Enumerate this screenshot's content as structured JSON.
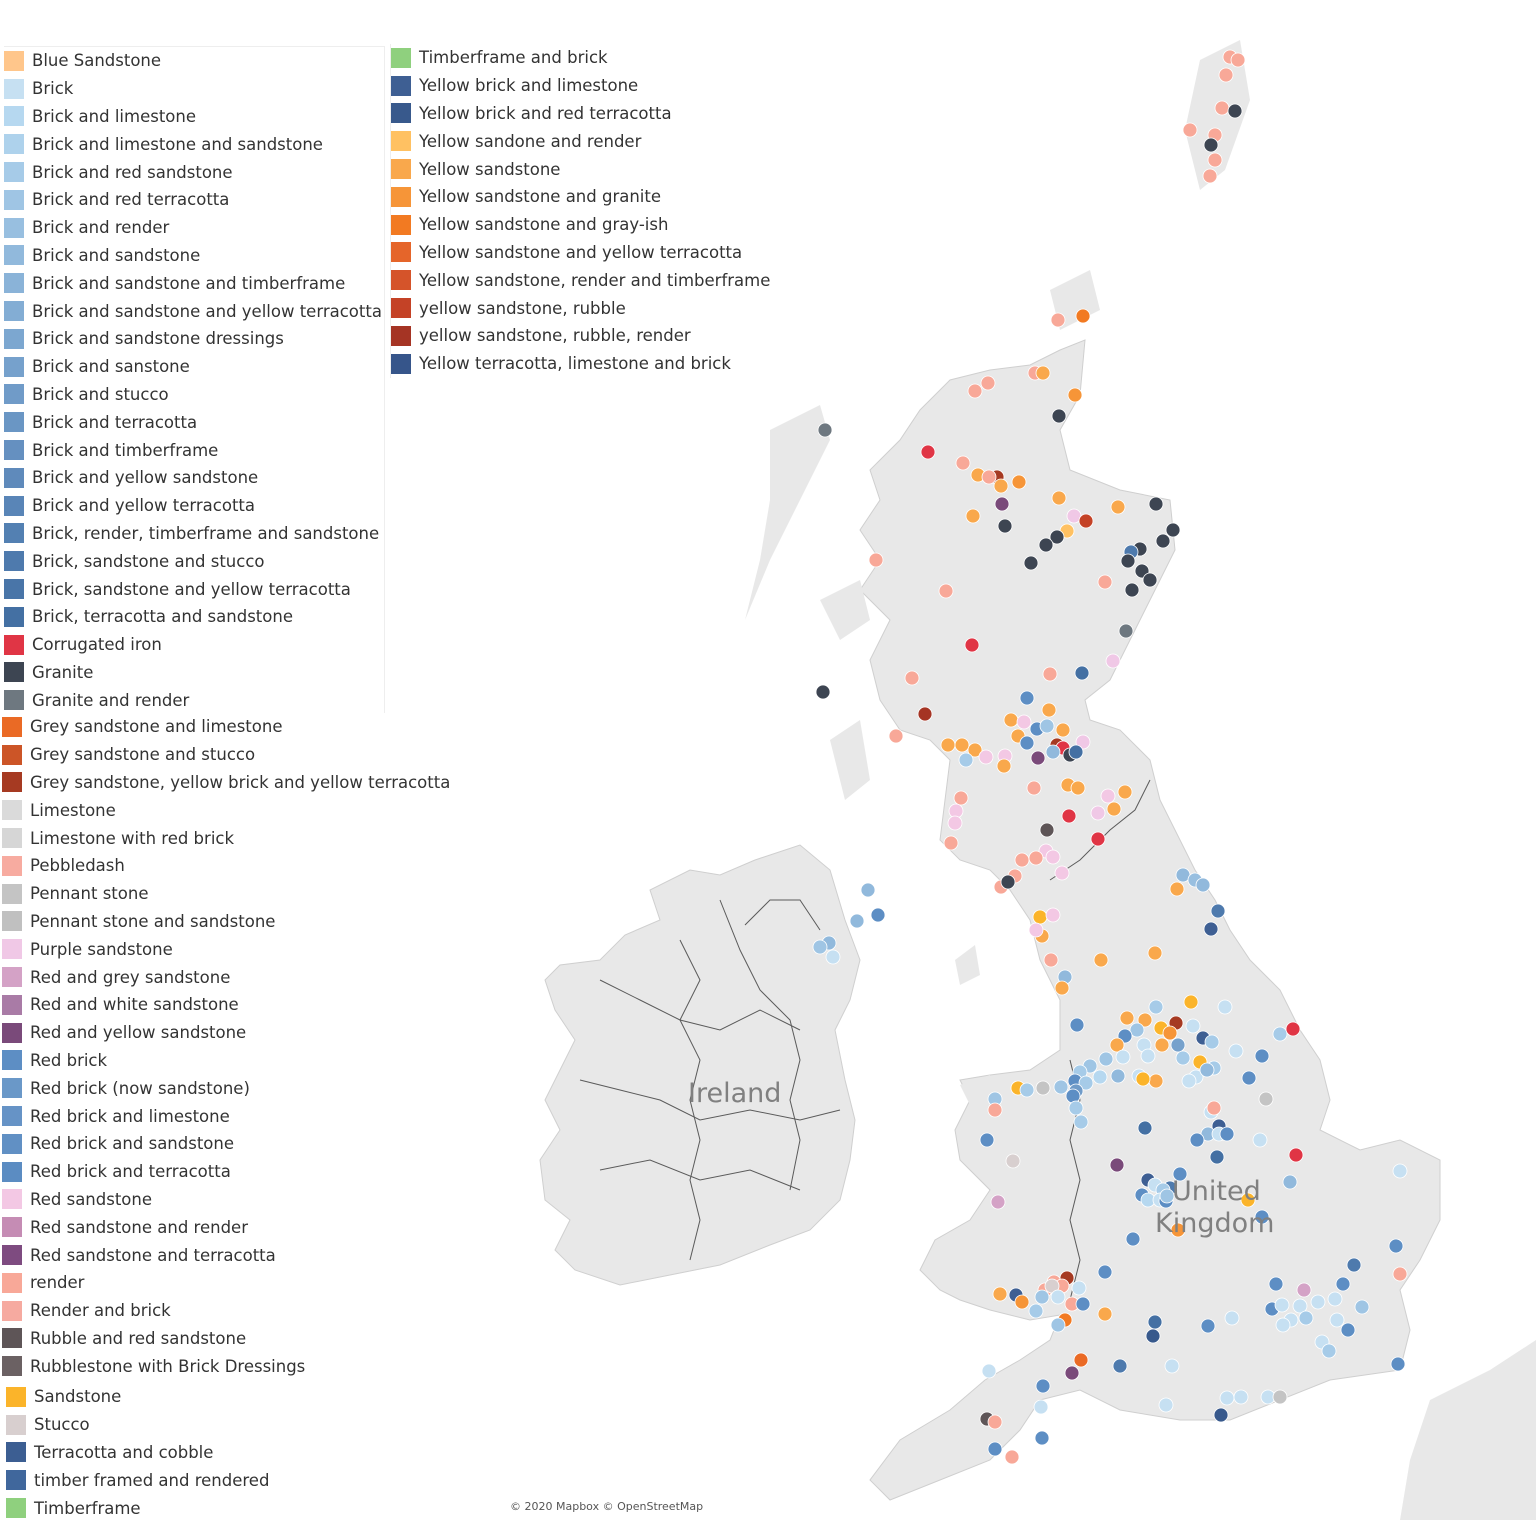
{
  "legend": {
    "col1": [
      {
        "label": "Blue Sandstone",
        "color": "#ffc68b",
        "icon": "square-swatch"
      },
      {
        "label": "Brick",
        "color": "#c6e0f2",
        "icon": "square-swatch"
      },
      {
        "label": "Brick and limestone",
        "color": "#b6d8f0",
        "icon": "square-swatch"
      },
      {
        "label": "Brick and limestone and sandstone",
        "color": "#aed2ec",
        "icon": "square-swatch"
      },
      {
        "label": "Brick and red sandstone",
        "color": "#a6cbe8",
        "icon": "square-swatch"
      },
      {
        "label": "Brick and red terracotta",
        "color": "#9fc5e4",
        "icon": "square-swatch"
      },
      {
        "label": "Brick and render",
        "color": "#98bfe0",
        "icon": "square-swatch"
      },
      {
        "label": "Brick and sandstone",
        "color": "#91b9dc",
        "icon": "square-swatch"
      },
      {
        "label": "Brick and sandstone and timberframe",
        "color": "#8ab3d8",
        "icon": "square-swatch"
      },
      {
        "label": "Brick and sandstone and yellow terracotta",
        "color": "#83add4",
        "icon": "square-swatch"
      },
      {
        "label": "Brick and sandstone dressings",
        "color": "#7ca7d0",
        "icon": "square-swatch"
      },
      {
        "label": "Brick and sanstone",
        "color": "#76a1cc",
        "icon": "square-swatch"
      },
      {
        "label": "Brick and stucco",
        "color": "#709bc8",
        "icon": "square-swatch"
      },
      {
        "label": "Brick and terracotta",
        "color": "#6a96c4",
        "icon": "square-swatch"
      },
      {
        "label": "Brick and timberframe",
        "color": "#6590c0",
        "icon": "square-swatch"
      },
      {
        "label": "Brick and yellow sandstone",
        "color": "#5f8abb",
        "icon": "square-swatch"
      },
      {
        "label": "Brick and yellow terracotta",
        "color": "#5985b7",
        "icon": "square-swatch"
      },
      {
        "label": "Brick, render, timberframe and sandstone",
        "color": "#5380b2",
        "icon": "square-swatch"
      },
      {
        "label": "Brick, sandstone and stucco",
        "color": "#4e7aad",
        "icon": "square-swatch"
      },
      {
        "label": "Brick, sandstone and yellow terracotta",
        "color": "#4975a8",
        "icon": "square-swatch"
      },
      {
        "label": "Brick, terracotta and sandstone",
        "color": "#4470a3",
        "icon": "square-swatch"
      },
      {
        "label": "Corrugated iron",
        "color": "#e03545",
        "icon": "square-swatch"
      },
      {
        "label": "Granite",
        "color": "#3d4552",
        "icon": "square-swatch"
      },
      {
        "label": "Granite and render",
        "color": "#6e7880",
        "icon": "square-swatch"
      }
    ],
    "col2": [
      {
        "label": "Grey sandstone and limestone",
        "color": "#ea6a25",
        "icon": "square-swatch"
      },
      {
        "label": "Grey sandstone and stucco",
        "color": "#cc5527",
        "icon": "square-swatch"
      },
      {
        "label": "Grey sandstone, yellow brick and yellow terracotta",
        "color": "#a63a22",
        "icon": "square-swatch"
      },
      {
        "label": "Limestone",
        "color": "#dadada",
        "icon": "square-swatch"
      },
      {
        "label": "Limestone with red brick",
        "color": "#d6d6d6",
        "icon": "square-swatch"
      },
      {
        "label": "Pebbledash",
        "color": "#f7aba0",
        "icon": "square-swatch"
      },
      {
        "label": "Pennant stone",
        "color": "#c4c4c4",
        "icon": "square-swatch"
      },
      {
        "label": "Pennant stone and sandstone",
        "color": "#c0c0c0",
        "icon": "square-swatch"
      },
      {
        "label": "Purple sandstone",
        "color": "#f0c8e6",
        "icon": "square-swatch"
      },
      {
        "label": "Red and grey sandstone",
        "color": "#d4a2c6",
        "icon": "square-swatch"
      },
      {
        "label": "Red and white sandstone",
        "color": "#a97ba6",
        "icon": "square-swatch"
      },
      {
        "label": "Red and yellow sandstone",
        "color": "#7a4a7a",
        "icon": "square-swatch"
      },
      {
        "label": "Red brick",
        "color": "#5d8ec4",
        "icon": "square-swatch"
      },
      {
        "label": "Red brick (now sandstone)",
        "color": "#6a98c8",
        "icon": "square-swatch"
      },
      {
        "label": "Red brick and limestone",
        "color": "#6693c6",
        "icon": "square-swatch"
      },
      {
        "label": "Red brick and sandstone",
        "color": "#6190c4",
        "icon": "square-swatch"
      },
      {
        "label": "Red brick and terracotta",
        "color": "#5b8cc2",
        "icon": "square-swatch"
      },
      {
        "label": "Red sandstone",
        "color": "#f3c8e4",
        "icon": "square-swatch"
      },
      {
        "label": "Red sandstone and render",
        "color": "#c58cb4",
        "icon": "square-swatch"
      },
      {
        "label": "Red sandstone and terracotta",
        "color": "#7e4b80",
        "icon": "square-swatch"
      },
      {
        "label": "render",
        "color": "#f8a898",
        "icon": "square-swatch"
      },
      {
        "label": "Render and brick",
        "color": "#f6aaa0",
        "icon": "square-swatch"
      },
      {
        "label": "Rubble and red sandstone",
        "color": "#5e5557",
        "icon": "square-swatch"
      },
      {
        "label": "Rubblestone with Brick Dressings",
        "color": "#6b6163",
        "icon": "square-swatch"
      }
    ],
    "col3": [
      {
        "label": "Timberframe and brick",
        "color": "#8fd07e",
        "icon": "square-swatch"
      },
      {
        "label": "Yellow brick and limestone",
        "color": "#3e5f93",
        "icon": "square-swatch"
      },
      {
        "label": "Yellow brick and red terracotta",
        "color": "#38598c",
        "icon": "square-swatch"
      },
      {
        "label": "Yellow sandone and render",
        "color": "#ffc162",
        "icon": "square-swatch"
      },
      {
        "label": "Yellow sandstone",
        "color": "#f9a84c",
        "icon": "square-swatch"
      },
      {
        "label": "Yellow sandstone and granite",
        "color": "#f69538",
        "icon": "square-swatch"
      },
      {
        "label": "Yellow sandstone and gray-ish",
        "color": "#f27a22",
        "icon": "square-swatch"
      },
      {
        "label": "Yellow sandstone and yellow terracotta",
        "color": "#e5652a",
        "icon": "square-swatch"
      },
      {
        "label": "Yellow sandstone, render and timberframe",
        "color": "#d5542a",
        "icon": "square-swatch"
      },
      {
        "label": "yellow sandstone, rubble",
        "color": "#c44226",
        "icon": "square-swatch"
      },
      {
        "label": "yellow sandstone, rubble, render",
        "color": "#a53424",
        "icon": "square-swatch"
      },
      {
        "label": "Yellow terracotta, limestone and brick",
        "color": "#36558a",
        "icon": "square-swatch"
      }
    ],
    "col4": [
      {
        "label": "Sandstone",
        "color": "#fbb42a",
        "icon": "square-swatch"
      },
      {
        "label": "Stucco",
        "color": "#d8cfcf",
        "icon": "square-swatch"
      },
      {
        "label": "Terracotta and cobble",
        "color": "#3c5e92",
        "icon": "square-swatch"
      },
      {
        "label": "timber framed and rendered",
        "color": "#40679c",
        "icon": "square-swatch"
      },
      {
        "label": "Timberframe",
        "color": "#8fd07e",
        "icon": "square-swatch"
      }
    ]
  },
  "map": {
    "labels": {
      "ireland": "Ireland",
      "uk_line1": "United",
      "uk_line2": "Kingdom"
    },
    "attribution": "© 2020 Mapbox © OpenStreetMap",
    "land_color": "#e8e8e8",
    "border_color": "#5a5a5a"
  }
}
